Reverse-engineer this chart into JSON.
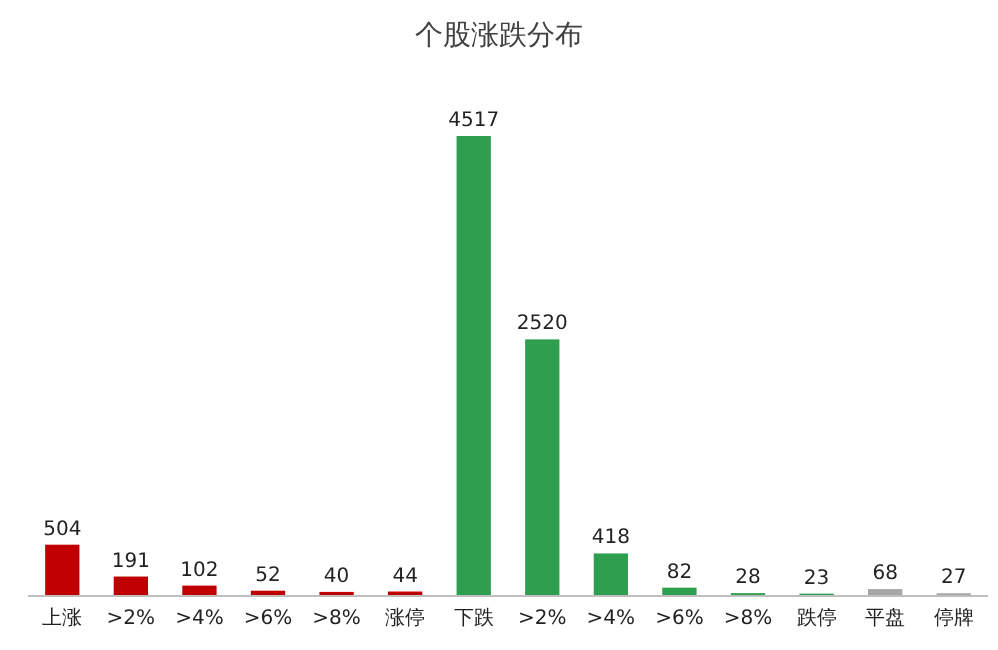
{
  "chart_data": {
    "type": "bar",
    "title": "个股涨跌分布",
    "categories": [
      "上涨",
      ">2%",
      ">4%",
      ">6%",
      ">8%",
      "涨停",
      "下跌",
      ">2%",
      ">4%",
      ">6%",
      ">8%",
      "跌停",
      "平盘",
      "停牌"
    ],
    "values": [
      504,
      191,
      102,
      52,
      40,
      44,
      4517,
      2520,
      418,
      82,
      28,
      23,
      68,
      27
    ],
    "colors": [
      "#c00000",
      "#c00000",
      "#c00000",
      "#c00000",
      "#c00000",
      "#c00000",
      "#2e9e4f",
      "#2e9e4f",
      "#2e9e4f",
      "#2e9e4f",
      "#2e9e4f",
      "#2e9e4f",
      "#a6a6a6",
      "#a6a6a6"
    ],
    "data_labels": true
  }
}
